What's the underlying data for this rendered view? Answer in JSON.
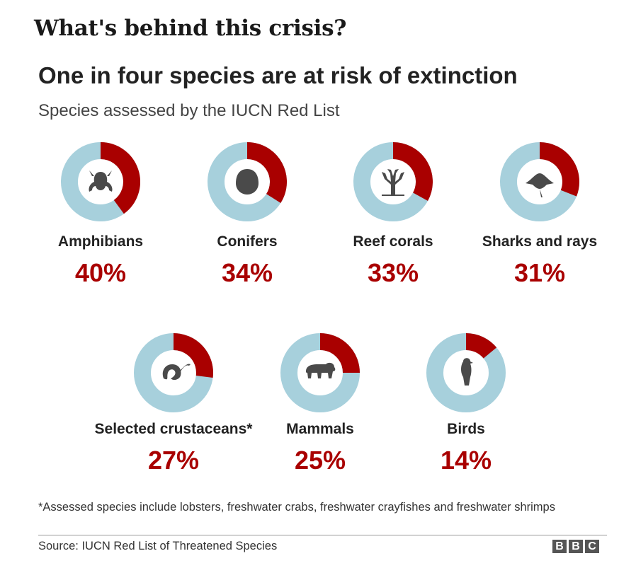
{
  "page": {
    "heading": "What's behind this crisis?"
  },
  "chart_data": {
    "type": "pie",
    "title": "One in four species are at risk of extinction",
    "subtitle": "Species assessed by the IUCN Red List",
    "categories": [
      "Amphibians",
      "Conifers",
      "Reef corals",
      "Sharks and rays",
      "Selected crustaceans*",
      "Mammals",
      "Birds"
    ],
    "values": [
      40,
      34,
      33,
      31,
      27,
      25,
      14
    ],
    "value_labels": [
      "40%",
      "34%",
      "33%",
      "31%",
      "27%",
      "25%",
      "14%"
    ],
    "icons": [
      "frog-icon",
      "pinecone-icon",
      "coral-icon",
      "ray-icon",
      "shrimp-icon",
      "bear-icon",
      "bird-icon"
    ],
    "colors": {
      "at_risk": "#a90000",
      "other": "#a7d0dc",
      "icon": "#4a4a4a"
    },
    "footnote": "*Assessed species include lobsters, freshwater crabs, freshwater crayfishes and freshwater shrimps",
    "source": "Source: IUCN Red List of Threatened Species",
    "logo": [
      "B",
      "B",
      "C"
    ]
  }
}
